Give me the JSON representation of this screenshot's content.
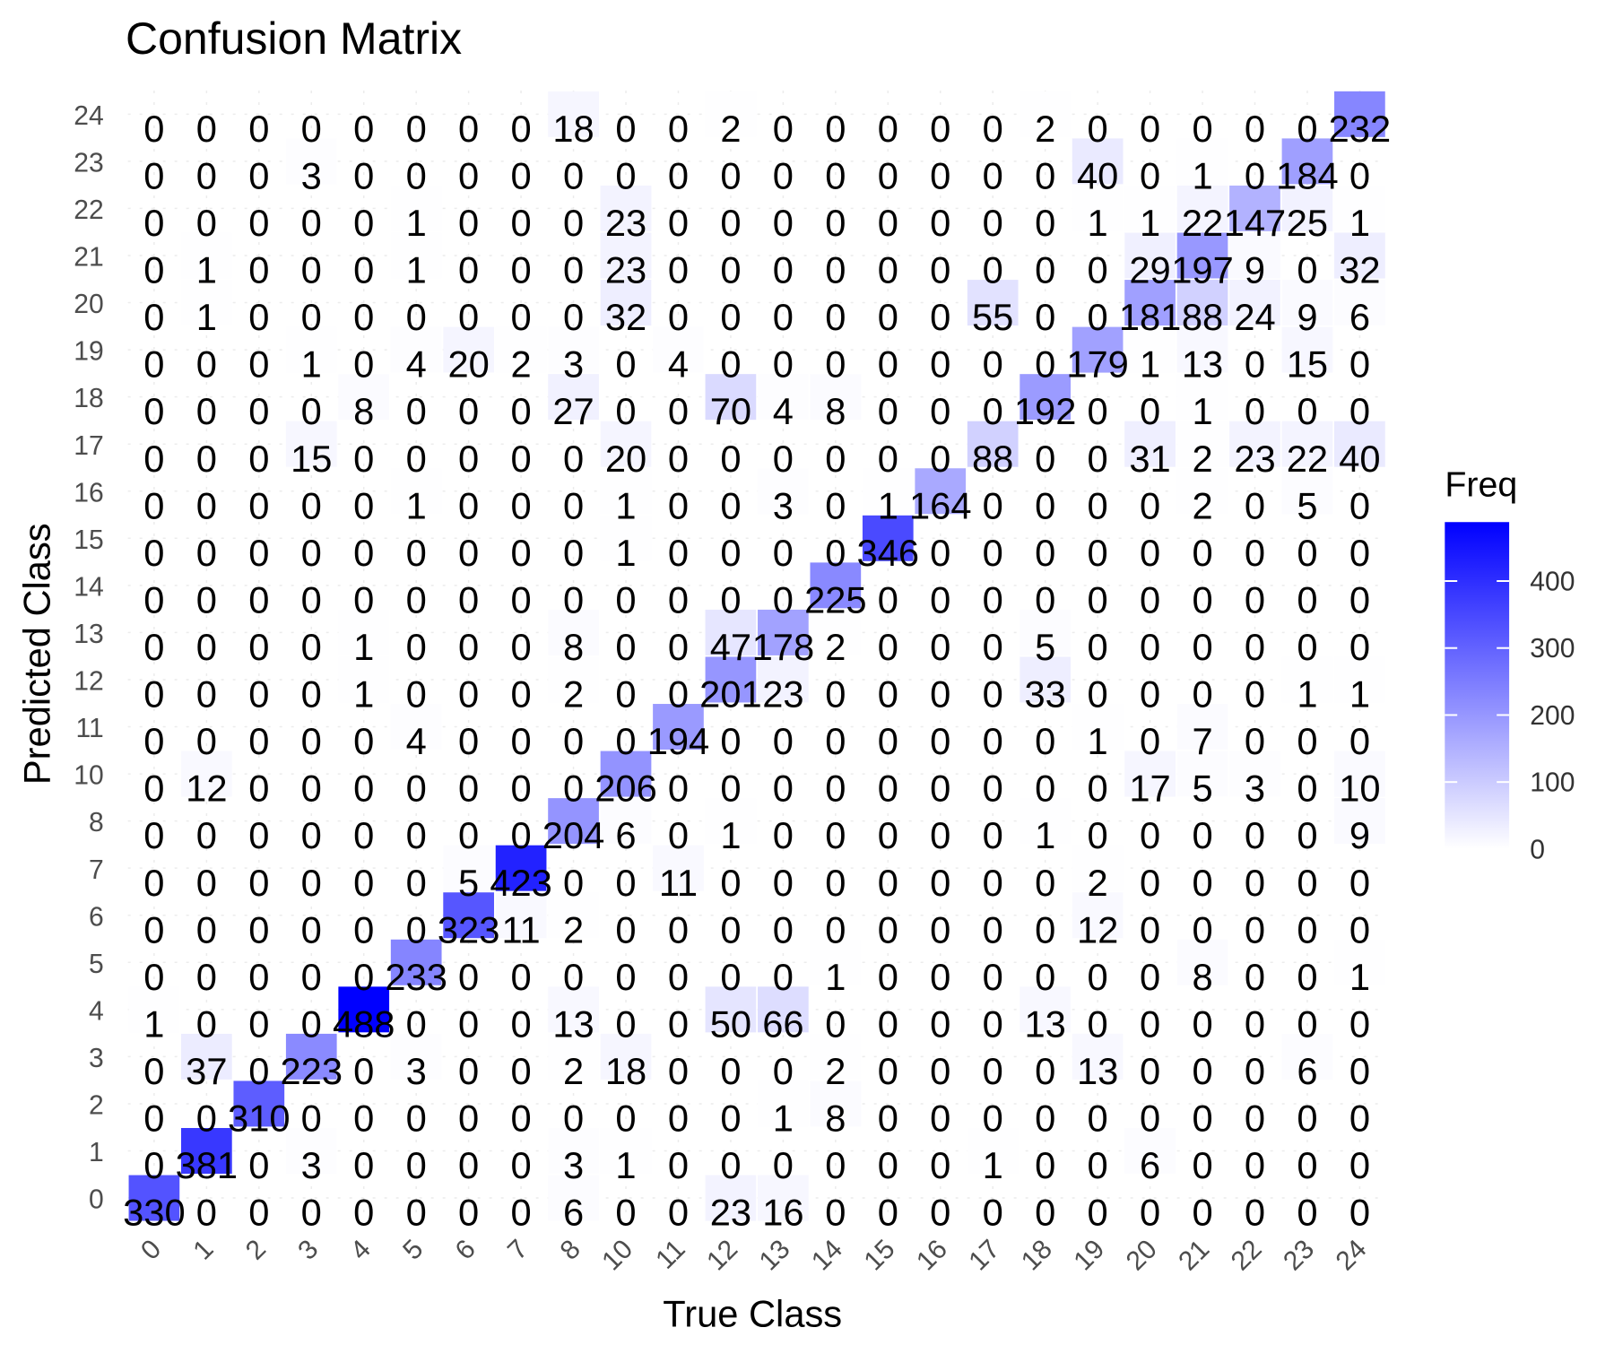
{
  "chart_data": {
    "type": "heatmap",
    "title": "Confusion Matrix",
    "xlabel": "True Class",
    "ylabel": "Predicted Class",
    "x_categories": [
      "0",
      "1",
      "2",
      "3",
      "4",
      "5",
      "6",
      "7",
      "8",
      "10",
      "11",
      "12",
      "13",
      "14",
      "15",
      "16",
      "17",
      "18",
      "19",
      "20",
      "21",
      "22",
      "23",
      "24"
    ],
    "y_categories": [
      "0",
      "1",
      "2",
      "3",
      "4",
      "5",
      "6",
      "7",
      "8",
      "10",
      "11",
      "12",
      "13",
      "14",
      "15",
      "16",
      "17",
      "18",
      "19",
      "20",
      "21",
      "22",
      "23",
      "24"
    ],
    "matrix_rows_top_to_bottom": [
      {
        "predicted": "24",
        "values": [
          0,
          0,
          0,
          0,
          0,
          0,
          0,
          0,
          18,
          0,
          0,
          2,
          0,
          0,
          0,
          0,
          0,
          2,
          0,
          0,
          0,
          0,
          0,
          232
        ]
      },
      {
        "predicted": "23",
        "values": [
          0,
          0,
          0,
          3,
          0,
          0,
          0,
          0,
          0,
          0,
          0,
          0,
          0,
          0,
          0,
          0,
          0,
          0,
          40,
          0,
          1,
          0,
          184,
          0
        ]
      },
      {
        "predicted": "22",
        "values": [
          0,
          0,
          0,
          0,
          0,
          1,
          0,
          0,
          0,
          23,
          0,
          0,
          0,
          0,
          0,
          0,
          0,
          0,
          1,
          1,
          22,
          147,
          25,
          1
        ]
      },
      {
        "predicted": "21",
        "values": [
          0,
          1,
          0,
          0,
          0,
          1,
          0,
          0,
          0,
          23,
          0,
          0,
          0,
          0,
          0,
          0,
          0,
          0,
          0,
          29,
          197,
          9,
          0,
          32
        ]
      },
      {
        "predicted": "20",
        "values": [
          0,
          1,
          0,
          0,
          0,
          0,
          0,
          0,
          0,
          32,
          0,
          0,
          0,
          0,
          0,
          0,
          55,
          0,
          0,
          181,
          88,
          24,
          9,
          6
        ]
      },
      {
        "predicted": "19",
        "values": [
          0,
          0,
          0,
          1,
          0,
          4,
          20,
          2,
          3,
          0,
          4,
          0,
          0,
          0,
          0,
          0,
          0,
          0,
          179,
          1,
          13,
          0,
          15,
          0
        ]
      },
      {
        "predicted": "18",
        "values": [
          0,
          0,
          0,
          0,
          8,
          0,
          0,
          0,
          27,
          0,
          0,
          70,
          4,
          8,
          0,
          0,
          0,
          192,
          0,
          0,
          1,
          0,
          0,
          0
        ]
      },
      {
        "predicted": "17",
        "values": [
          0,
          0,
          0,
          15,
          0,
          0,
          0,
          0,
          0,
          20,
          0,
          0,
          0,
          0,
          0,
          0,
          88,
          0,
          0,
          31,
          2,
          23,
          22,
          40
        ]
      },
      {
        "predicted": "16",
        "values": [
          0,
          0,
          0,
          0,
          0,
          1,
          0,
          0,
          0,
          1,
          0,
          0,
          3,
          0,
          1,
          164,
          0,
          0,
          0,
          0,
          2,
          0,
          5,
          0
        ]
      },
      {
        "predicted": "15",
        "values": [
          0,
          0,
          0,
          0,
          0,
          0,
          0,
          0,
          0,
          1,
          0,
          0,
          0,
          0,
          346,
          0,
          0,
          0,
          0,
          0,
          0,
          0,
          0,
          0
        ]
      },
      {
        "predicted": "14",
        "values": [
          0,
          0,
          0,
          0,
          0,
          0,
          0,
          0,
          0,
          0,
          0,
          0,
          0,
          225,
          0,
          0,
          0,
          0,
          0,
          0,
          0,
          0,
          0,
          0
        ]
      },
      {
        "predicted": "13",
        "values": [
          0,
          0,
          0,
          0,
          1,
          0,
          0,
          0,
          8,
          0,
          0,
          47,
          178,
          2,
          0,
          0,
          0,
          5,
          0,
          0,
          0,
          0,
          0,
          0
        ]
      },
      {
        "predicted": "12",
        "values": [
          0,
          0,
          0,
          0,
          1,
          0,
          0,
          0,
          2,
          0,
          0,
          201,
          23,
          0,
          0,
          0,
          0,
          33,
          0,
          0,
          0,
          0,
          1,
          1
        ]
      },
      {
        "predicted": "11",
        "values": [
          0,
          0,
          0,
          0,
          0,
          4,
          0,
          0,
          0,
          0,
          194,
          0,
          0,
          0,
          0,
          0,
          0,
          0,
          1,
          0,
          7,
          0,
          0,
          0
        ]
      },
      {
        "predicted": "10",
        "values": [
          0,
          12,
          0,
          0,
          0,
          0,
          0,
          0,
          0,
          206,
          0,
          0,
          0,
          0,
          0,
          0,
          0,
          0,
          0,
          17,
          5,
          3,
          0,
          10
        ]
      },
      {
        "predicted": "8",
        "values": [
          0,
          0,
          0,
          0,
          0,
          0,
          0,
          0,
          204,
          6,
          0,
          1,
          0,
          0,
          0,
          0,
          0,
          1,
          0,
          0,
          0,
          0,
          0,
          9
        ]
      },
      {
        "predicted": "7",
        "values": [
          0,
          0,
          0,
          0,
          0,
          0,
          5,
          423,
          0,
          0,
          11,
          0,
          0,
          0,
          0,
          0,
          0,
          0,
          2,
          0,
          0,
          0,
          0,
          0
        ]
      },
      {
        "predicted": "6",
        "values": [
          0,
          0,
          0,
          0,
          0,
          0,
          323,
          11,
          2,
          0,
          0,
          0,
          0,
          0,
          0,
          0,
          0,
          0,
          12,
          0,
          0,
          0,
          0,
          0
        ]
      },
      {
        "predicted": "5",
        "values": [
          0,
          0,
          0,
          0,
          0,
          233,
          0,
          0,
          0,
          0,
          0,
          0,
          0,
          1,
          0,
          0,
          0,
          0,
          0,
          0,
          8,
          0,
          0,
          1
        ]
      },
      {
        "predicted": "4",
        "values": [
          1,
          0,
          0,
          0,
          488,
          0,
          0,
          0,
          13,
          0,
          0,
          50,
          66,
          0,
          0,
          0,
          0,
          13,
          0,
          0,
          0,
          0,
          0,
          0
        ]
      },
      {
        "predicted": "3",
        "values": [
          0,
          37,
          0,
          223,
          0,
          3,
          0,
          0,
          2,
          18,
          0,
          0,
          0,
          2,
          0,
          0,
          0,
          0,
          13,
          0,
          0,
          0,
          6,
          0
        ]
      },
      {
        "predicted": "2",
        "values": [
          0,
          0,
          310,
          0,
          0,
          0,
          0,
          0,
          0,
          0,
          0,
          0,
          1,
          8,
          0,
          0,
          0,
          0,
          0,
          0,
          0,
          0,
          0,
          0
        ]
      },
      {
        "predicted": "1",
        "values": [
          0,
          381,
          0,
          3,
          0,
          0,
          0,
          0,
          3,
          1,
          0,
          0,
          0,
          0,
          0,
          0,
          1,
          0,
          0,
          6,
          0,
          0,
          0,
          0
        ]
      },
      {
        "predicted": "0",
        "values": [
          330,
          0,
          0,
          0,
          0,
          0,
          0,
          0,
          6,
          0,
          0,
          23,
          16,
          0,
          0,
          0,
          0,
          0,
          0,
          0,
          0,
          0,
          0,
          0
        ]
      }
    ],
    "legend": {
      "title": "Freq",
      "ticks": [
        0,
        100,
        200,
        300,
        400
      ],
      "range": [
        0,
        488
      ],
      "color_low": "#ffffff",
      "color_high": "#0000ff",
      "placement": "right"
    }
  }
}
